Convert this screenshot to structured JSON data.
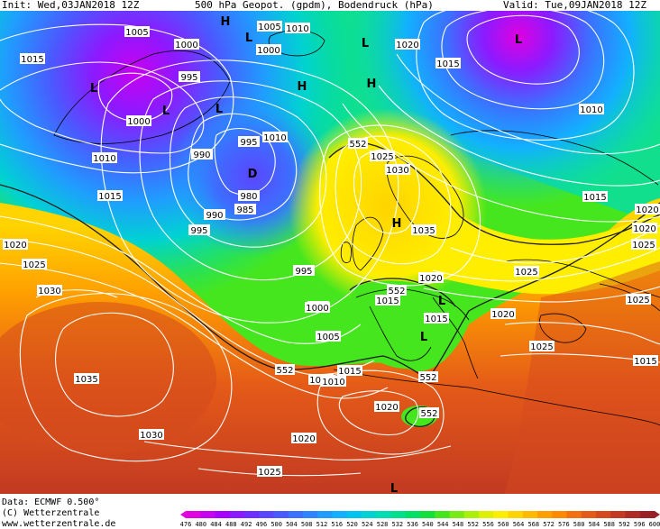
{
  "header": {
    "init": "Init: Wed,03JAN2018 12Z",
    "title": "500 hPa Geopot. (gpdm), Bodendruck (hPa)",
    "valid": "Valid: Tue,09JAN2018 12Z"
  },
  "footer": {
    "data_source": "Data: ECMWF   0.500°",
    "copyright": "(C) Wetterzentrale",
    "website": "www.wetterzentrale.de"
  },
  "colorbar": {
    "labels": [
      "476",
      "480",
      "484",
      "488",
      "492",
      "496",
      "500",
      "504",
      "508",
      "512",
      "516",
      "520",
      "524",
      "528",
      "532",
      "536",
      "540",
      "544",
      "548",
      "552",
      "556",
      "560",
      "564",
      "568",
      "572",
      "576",
      "580",
      "584",
      "588",
      "592",
      "596",
      "600"
    ],
    "colors": [
      "#e000e0",
      "#c800f0",
      "#a800ff",
      "#8c1aff",
      "#6e2eff",
      "#5a46ff",
      "#4a5aff",
      "#3c70ff",
      "#2e86ff",
      "#209cff",
      "#12b0ff",
      "#00c4f0",
      "#00d2d2",
      "#00dcb4",
      "#00e08c",
      "#00e064",
      "#14e03c",
      "#46e61e",
      "#78eb14",
      "#aaf00a",
      "#dcf000",
      "#ffee00",
      "#ffd400",
      "#ffba00",
      "#ffa000",
      "#ff8a00",
      "#f27010",
      "#e45a18",
      "#d44a1e",
      "#c23a22",
      "#ae2c26",
      "#9a2028"
    ]
  },
  "geopotential_labels": [
    "552",
    "552",
    "552",
    "552",
    "552"
  ],
  "pressure_labels": [
    "1005",
    "1000",
    "1005",
    "1010",
    "1015",
    "1020",
    "995",
    "1000",
    "1000",
    "1010",
    "1015",
    "1020",
    "1015",
    "1010",
    "995",
    "990",
    "995",
    "1010",
    "980",
    "985",
    "990",
    "995",
    "1025",
    "1030",
    "1035",
    "1030",
    "1025",
    "995",
    "1000",
    "1005",
    "1010",
    "1015",
    "1020",
    "1015",
    "1015",
    "1020",
    "1025",
    "1025",
    "1020",
    "1015",
    "1025",
    "1025",
    "1020",
    "1020",
    "1035",
    "1030",
    "1020",
    "1025",
    "1015",
    "1010"
  ],
  "pressure_centers": [
    "H",
    "H",
    "H",
    "H",
    "L",
    "L",
    "L",
    "L",
    "L",
    "D",
    "L",
    "L",
    "L",
    "L"
  ]
}
